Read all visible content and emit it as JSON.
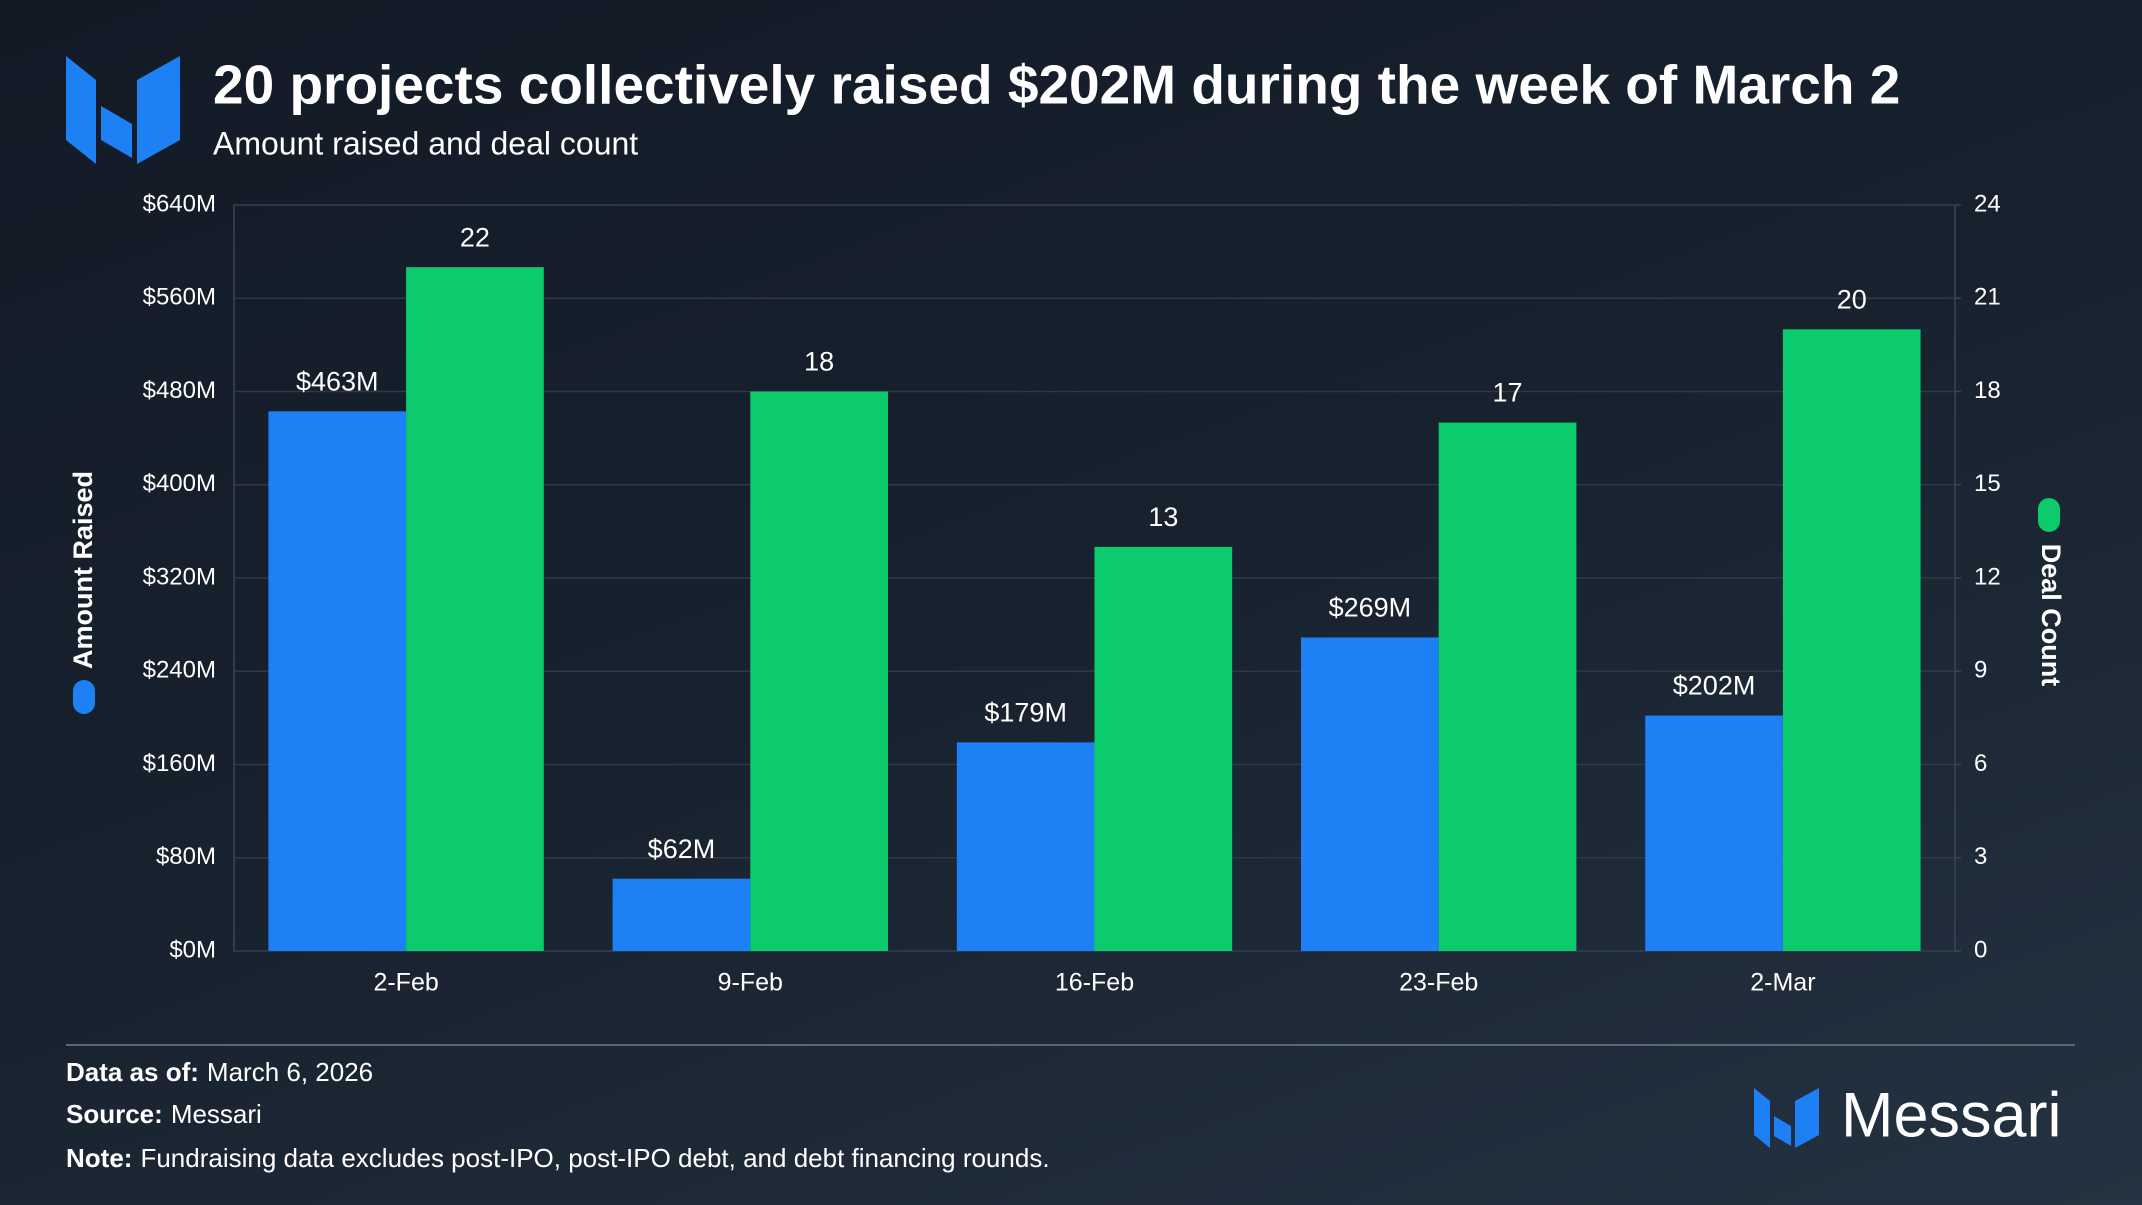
{
  "chart_data": {
    "type": "bar",
    "title": "20 projects collectively raised $202M during the week of March 2",
    "subtitle": "Amount raised and deal count",
    "categories": [
      "2-Feb",
      "9-Feb",
      "16-Feb",
      "23-Feb",
      "2-Mar"
    ],
    "series": [
      {
        "name": "Amount Raised",
        "color": "#1e80f5",
        "values": [
          463,
          62,
          179,
          269,
          202
        ],
        "value_labels": [
          "$463M",
          "$62M",
          "$179M",
          "$269M",
          "$202M"
        ]
      },
      {
        "name": "Deal Count",
        "color": "#0ccb6d",
        "axis": "y2",
        "values": [
          22,
          18,
          13,
          17,
          20
        ]
      }
    ],
    "ylim": [
      0,
      640
    ],
    "yticks": [
      {
        "value": 0,
        "label": "$0M"
      },
      {
        "value": 80,
        "label": "$80M"
      },
      {
        "value": 160,
        "label": "$160M"
      },
      {
        "value": 240,
        "label": "$240M"
      },
      {
        "value": 320,
        "label": "$320M"
      },
      {
        "value": 400,
        "label": "$400M"
      },
      {
        "value": 480,
        "label": "$480M"
      },
      {
        "value": 560,
        "label": "$560M"
      },
      {
        "value": 640,
        "label": "$640M"
      }
    ],
    "y2lim": [
      0,
      24
    ],
    "y2ticks": [
      0,
      3,
      6,
      9,
      12,
      15,
      18,
      21,
      24
    ],
    "grid": true
  },
  "footer": [
    {
      "label": "Data as of:",
      "text": "March 6, 2026"
    },
    {
      "label": "Source:",
      "text": "Messari"
    },
    {
      "label": "Note:",
      "text": "Fundraising data excludes post-IPO, post-IPO debt, and debt financing rounds."
    }
  ],
  "brand": "Messari"
}
